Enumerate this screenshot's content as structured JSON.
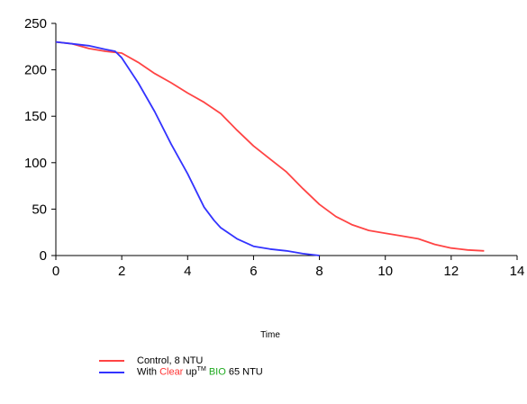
{
  "chart_data": {
    "type": "line",
    "xlabel": "Time",
    "ylabel": "",
    "xlim": [
      0,
      14
    ],
    "ylim": [
      0,
      250
    ],
    "x_ticks": [
      "0",
      "2",
      "4",
      "6",
      "8",
      "10",
      "12",
      "14"
    ],
    "y_ticks": [
      "0",
      "50",
      "100",
      "150",
      "200",
      "250"
    ],
    "series": [
      {
        "name": "Control, 8 NTU",
        "color": "#ff4444",
        "x": [
          0,
          0.5,
          1,
          1.5,
          2,
          2.5,
          3,
          3.5,
          4,
          4.5,
          5,
          5.5,
          6,
          6.5,
          7,
          7.5,
          8,
          8.5,
          9,
          9.5,
          10,
          10.5,
          11,
          11.5,
          12,
          12.5,
          13
        ],
        "y": [
          230,
          228,
          223,
          220,
          218,
          208,
          196,
          186,
          175,
          165,
          153,
          135,
          118,
          104,
          90,
          72,
          55,
          42,
          33,
          27,
          24,
          21,
          18,
          12,
          8,
          6,
          5
        ]
      },
      {
        "name": "With Clear up™ BIO 65 NTU",
        "color": "#3333ff",
        "x": [
          0,
          0.5,
          1,
          1.5,
          1.8,
          2,
          2.5,
          3,
          3.5,
          4,
          4.5,
          4.8,
          5,
          5.5,
          6,
          6.5,
          7,
          7.5,
          8
        ],
        "y": [
          230,
          228,
          226,
          222,
          220,
          213,
          186,
          155,
          120,
          88,
          52,
          38,
          30,
          18,
          10,
          7,
          5,
          2,
          0
        ]
      }
    ]
  },
  "legend": {
    "control_label": "Control, 8 NTU",
    "bio_prefix": "With ",
    "bio_clear": "Clear",
    "bio_space": " ",
    "bio_up": "up",
    "bio_tm": "TM",
    "bio_space2": " ",
    "bio_bio": "BIO",
    "bio_suffix": " 65 NTU"
  }
}
